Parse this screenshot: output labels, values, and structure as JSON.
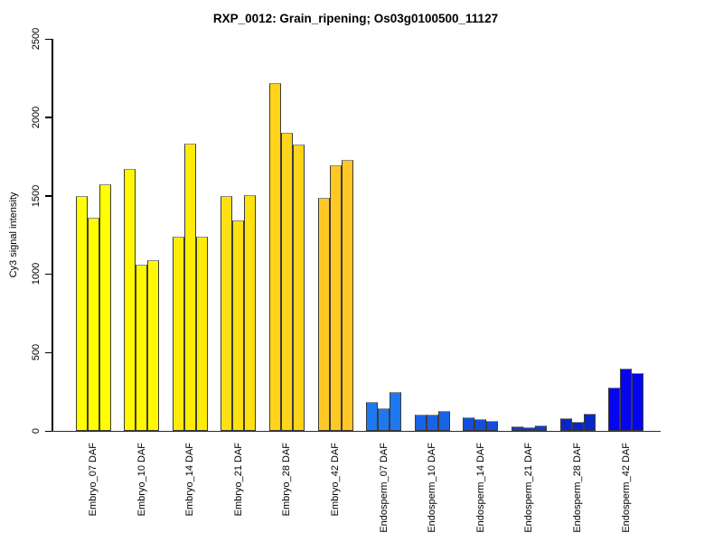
{
  "figure": {
    "title": "RXP_0012: Grain_ripening; Os03g0100500_11127",
    "ylabel": "Cy3 signal intensity"
  },
  "chart_data": {
    "type": "bar",
    "title": "RXP_0012: Grain_ripening; Os03g0100500_11127",
    "xlabel": "",
    "ylabel": "Cy3 signal intensity",
    "ylim": [
      0,
      2500
    ],
    "ytick_labels": [
      "0",
      "500",
      "1000",
      "1500",
      "2000",
      "2500"
    ],
    "grid": false,
    "legend": "none",
    "bar_layout": "12 sample groups, 3 replicate bars each, bars adjacent within group",
    "groups": [
      {
        "label": "Embryo_07 DAF",
        "color": "#FFFF00",
        "values": [
          1500,
          1360,
          1575
        ]
      },
      {
        "label": "Embryo_10 DAF",
        "color": "#FFF800",
        "values": [
          1670,
          1060,
          1090
        ]
      },
      {
        "label": "Embryo_14 DAF",
        "color": "#FFEC06",
        "values": [
          1240,
          1830,
          1240
        ]
      },
      {
        "label": "Embryo_21 DAF",
        "color": "#FFE010",
        "values": [
          1500,
          1340,
          1505
        ]
      },
      {
        "label": "Embryo_28 DAF",
        "color": "#FFD41A",
        "values": [
          2220,
          1900,
          1825
        ]
      },
      {
        "label": "Embryo_42 DAF",
        "color": "#FFC824",
        "values": [
          1485,
          1695,
          1730
        ]
      },
      {
        "label": "Endosperm_07 DAF",
        "color": "#1E78F0",
        "values": [
          185,
          145,
          245
        ]
      },
      {
        "label": "Endosperm_10 DAF",
        "color": "#1964E6",
        "values": [
          105,
          105,
          125
        ]
      },
      {
        "label": "Endosperm_14 DAF",
        "color": "#144FDC",
        "values": [
          85,
          75,
          65
        ]
      },
      {
        "label": "Endosperm_21 DAF",
        "color": "#0F3BD2",
        "values": [
          30,
          25,
          35
        ]
      },
      {
        "label": "Endosperm_28 DAF",
        "color": "#0A26C8",
        "values": [
          80,
          60,
          110
        ]
      },
      {
        "label": "Endosperm_42 DAF",
        "color": "#0505F0",
        "values": [
          275,
          400,
          368
        ]
      }
    ]
  }
}
